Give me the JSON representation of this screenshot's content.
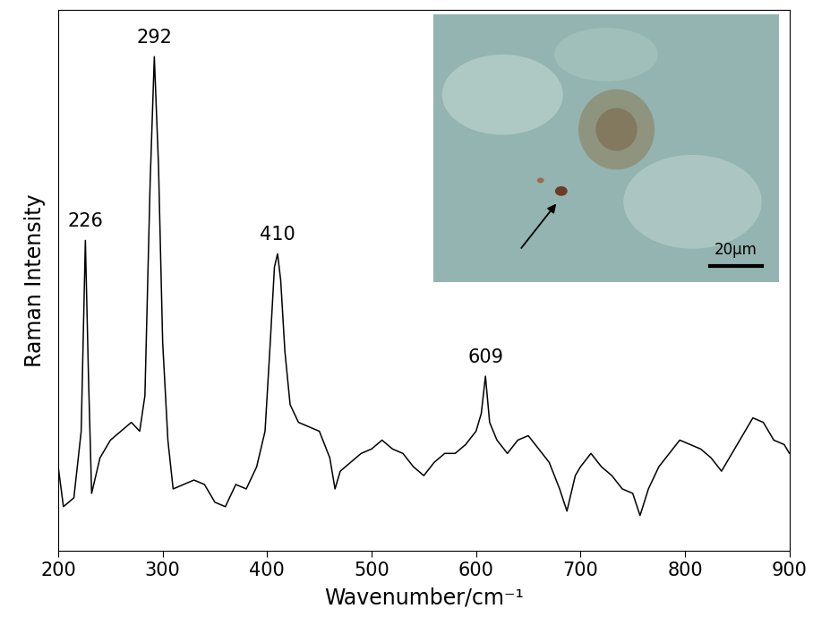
{
  "chart_data": {
    "type": "line",
    "x_label": "Wavenumber/cm⁻¹",
    "y_label": "Raman Intensity",
    "x": [
      200,
      205,
      215,
      222,
      226,
      229,
      232,
      240,
      250,
      260,
      270,
      278,
      283,
      288,
      292,
      296,
      300,
      305,
      310,
      320,
      330,
      340,
      350,
      360,
      370,
      380,
      390,
      398,
      403,
      407,
      410,
      413,
      417,
      422,
      430,
      440,
      450,
      460,
      465,
      470,
      480,
      490,
      500,
      510,
      520,
      530,
      540,
      550,
      560,
      570,
      580,
      590,
      600,
      605,
      609,
      613,
      620,
      630,
      640,
      650,
      660,
      670,
      680,
      687,
      695,
      700,
      710,
      720,
      730,
      740,
      750,
      757,
      765,
      775,
      785,
      795,
      805,
      815,
      825,
      835,
      845,
      855,
      865,
      875,
      885,
      895,
      900
    ],
    "values": [
      9.5,
      5,
      6,
      13.5,
      35,
      19.5,
      6.5,
      10.5,
      12.5,
      13.5,
      14.5,
      13.5,
      17.5,
      41.5,
      55.7,
      43.5,
      23.5,
      12.5,
      7,
      7.5,
      8,
      7.5,
      5.5,
      5,
      7.5,
      7,
      9.5,
      13.5,
      23.5,
      32,
      33.5,
      30.5,
      22.5,
      16.5,
      14.5,
      14,
      13.5,
      10.5,
      7,
      9,
      10,
      11,
      11.5,
      12.5,
      11.5,
      11,
      9.5,
      8.5,
      10,
      11,
      11,
      12,
      13.5,
      15.5,
      19.7,
      14.5,
      12.5,
      11,
      12.5,
      13,
      11.5,
      10,
      7,
      4.5,
      8.5,
      9.5,
      11,
      9.5,
      8.5,
      7,
      6.5,
      4,
      7,
      9.5,
      11,
      12.5,
      12,
      11.5,
      10.5,
      9,
      11,
      13,
      15,
      14.5,
      12.5,
      12,
      11
    ],
    "color": "#000000",
    "xlim": [
      200,
      900
    ],
    "xticks": [
      200,
      300,
      400,
      500,
      600,
      700,
      800,
      900
    ],
    "ylim": [
      0,
      61
    ],
    "tick_labels": "x",
    "peak_labels": [
      "226",
      "292",
      "410",
      "609"
    ],
    "inset_scale_bar": "20μm"
  }
}
